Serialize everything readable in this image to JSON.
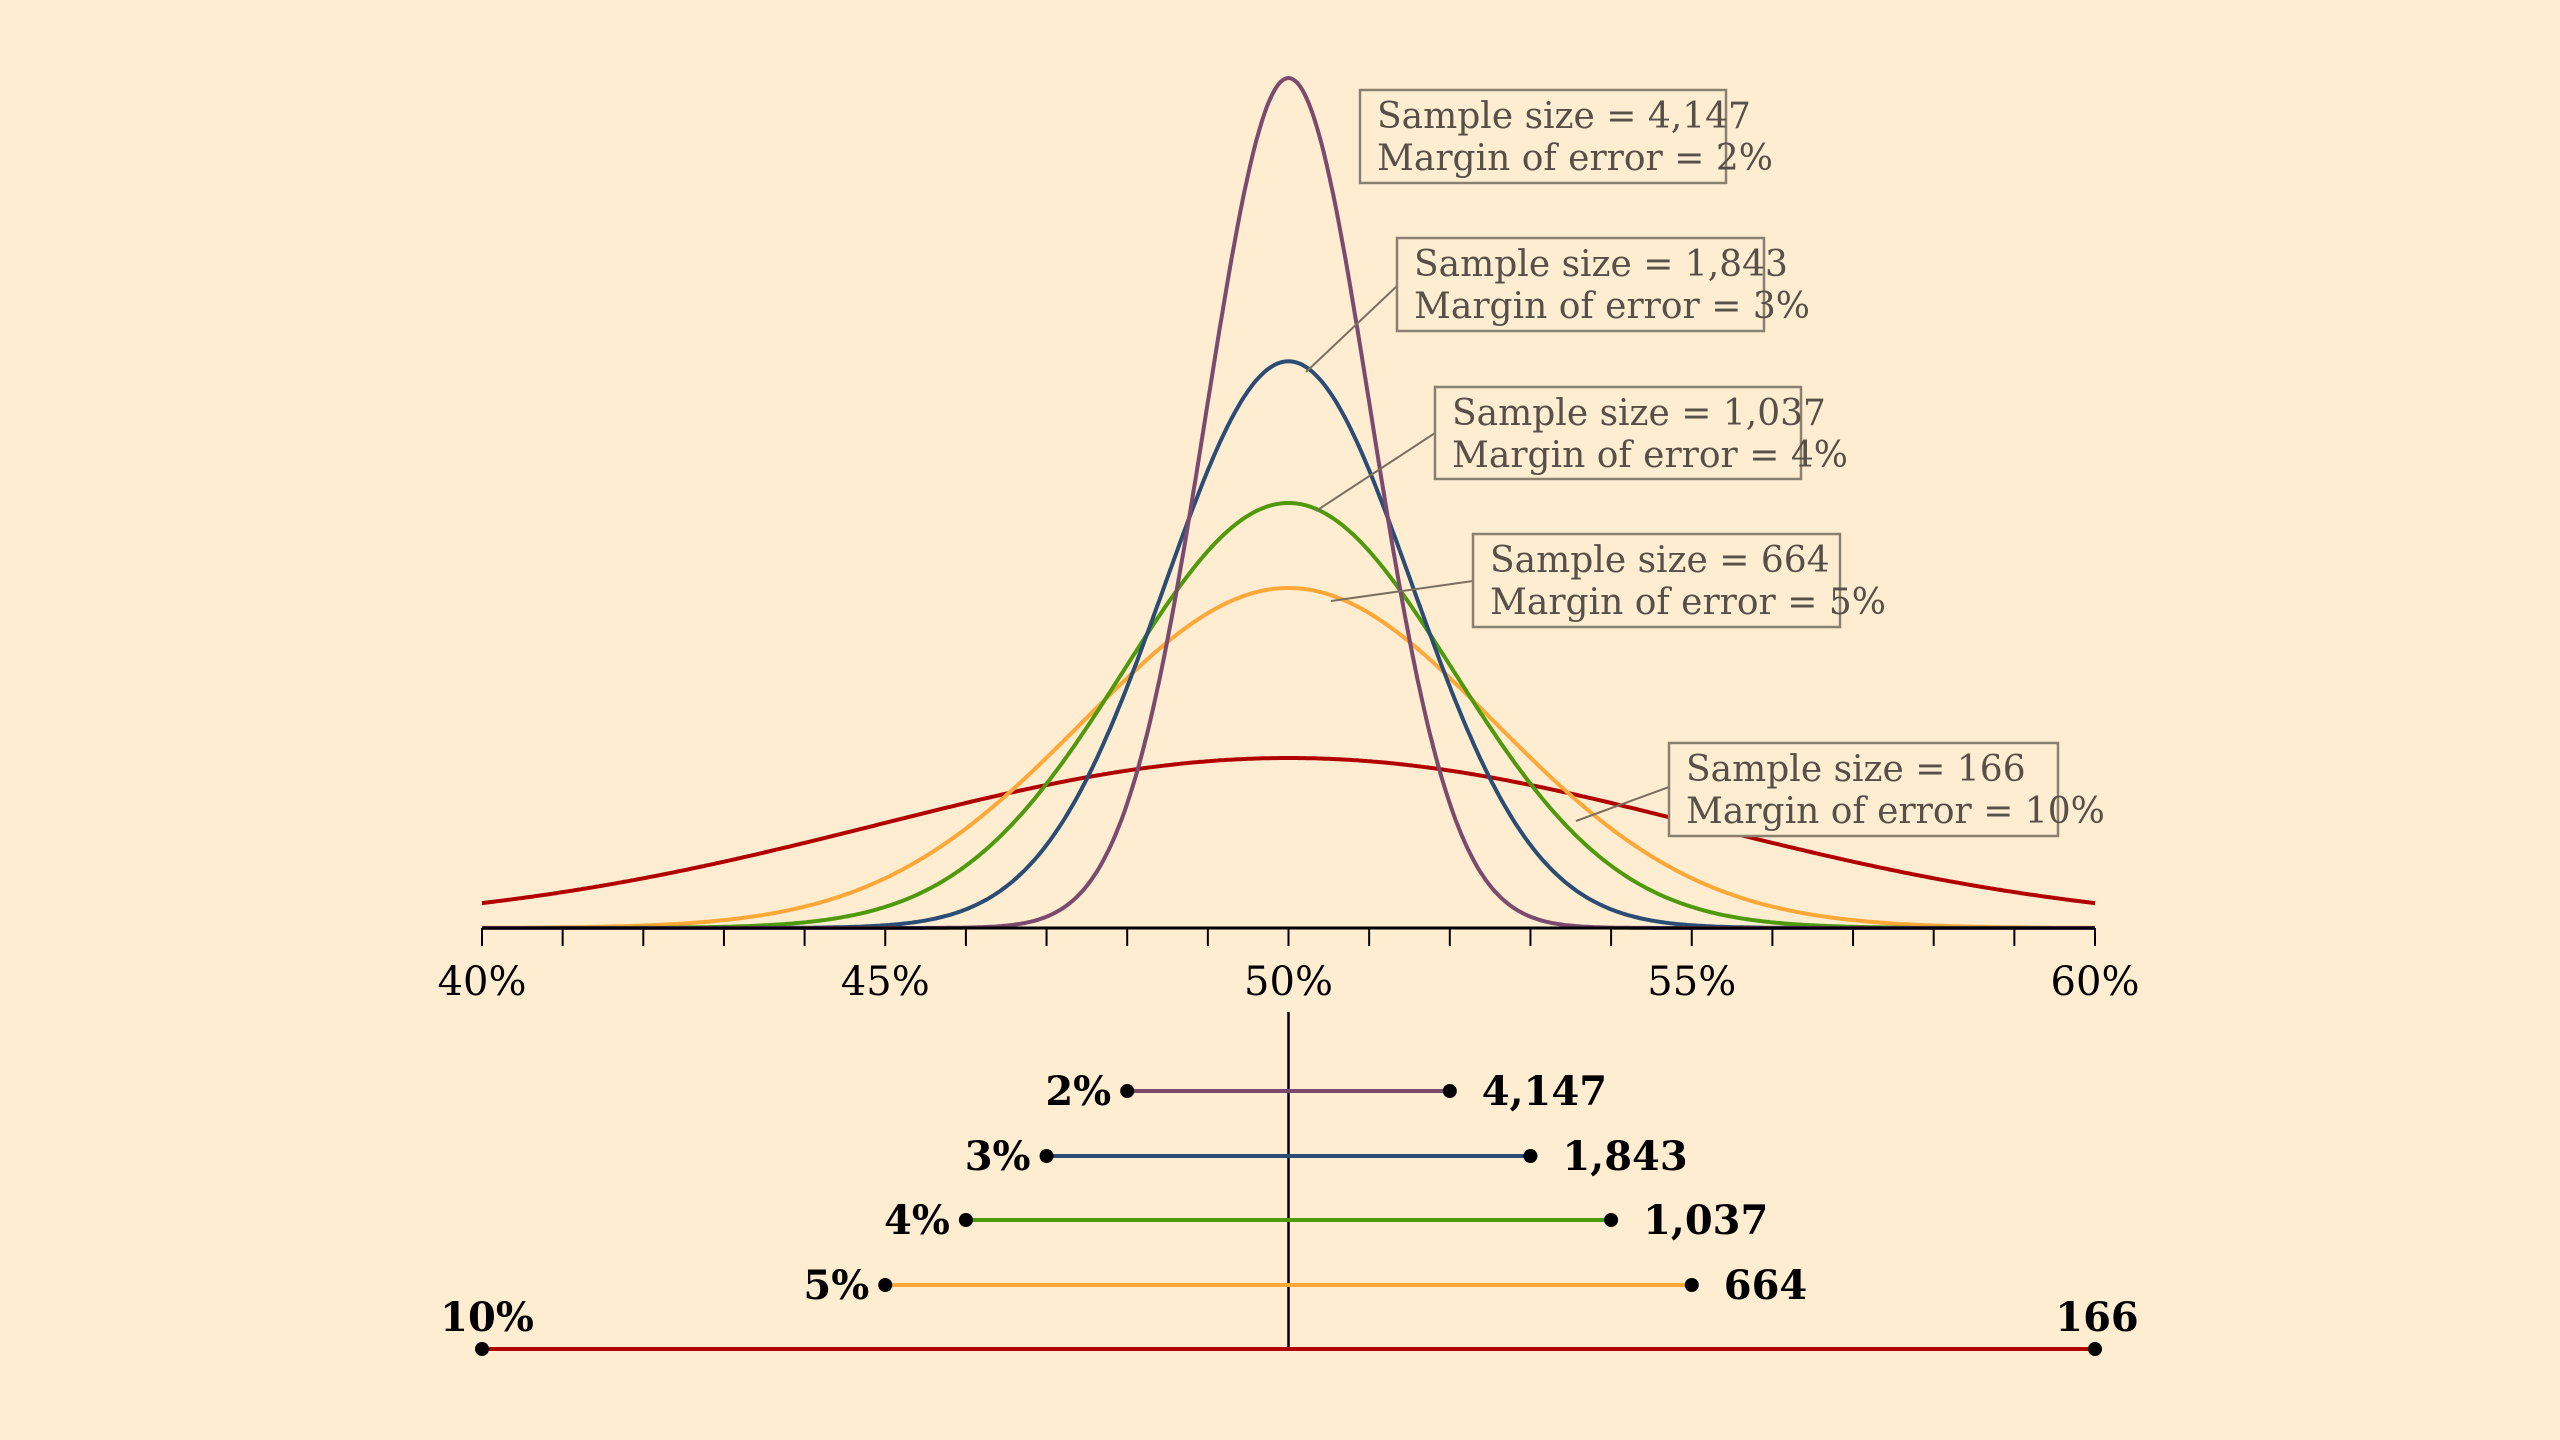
{
  "chart_data": {
    "type": "line",
    "xlim": [
      40,
      60
    ],
    "x_unit": "%",
    "x_ticks": [
      "40%",
      "45%",
      "50%",
      "55%",
      "60%"
    ],
    "minor_tick_step": 1,
    "center": 50,
    "grid": false,
    "background": "#ffedd2",
    "series": [
      {
        "sample_size": "4,147",
        "margin_of_error": 2,
        "color": "#7a4b6e",
        "label_line1": "Sample size = 4,147",
        "label_line2": "Margin of error = 2%",
        "interval_left": "2%",
        "interval_right": "4,147"
      },
      {
        "sample_size": "1,843",
        "margin_of_error": 3,
        "color": "#2b4c75",
        "label_line1": "Sample size = 1,843",
        "label_line2": "Margin of error = 3%",
        "interval_left": "3%",
        "interval_right": "1,843"
      },
      {
        "sample_size": "1,037",
        "margin_of_error": 4,
        "color": "#4e9a0c",
        "label_line1": "Sample size = 1,037",
        "label_line2": "Margin of error = 4%",
        "interval_left": "4%",
        "interval_right": "1,037"
      },
      {
        "sample_size": "664",
        "margin_of_error": 5,
        "color": "#ffa838",
        "label_line1": "Sample size = 664",
        "label_line2": "Margin of error = 5%",
        "interval_left": "5%",
        "interval_right": "664"
      },
      {
        "sample_size": "166",
        "margin_of_error": 10,
        "color": "#b00000",
        "label_line1": "Sample size = 166",
        "label_line2": "Margin of error = 10%",
        "interval_left": "10%",
        "interval_right": "166"
      }
    ]
  }
}
